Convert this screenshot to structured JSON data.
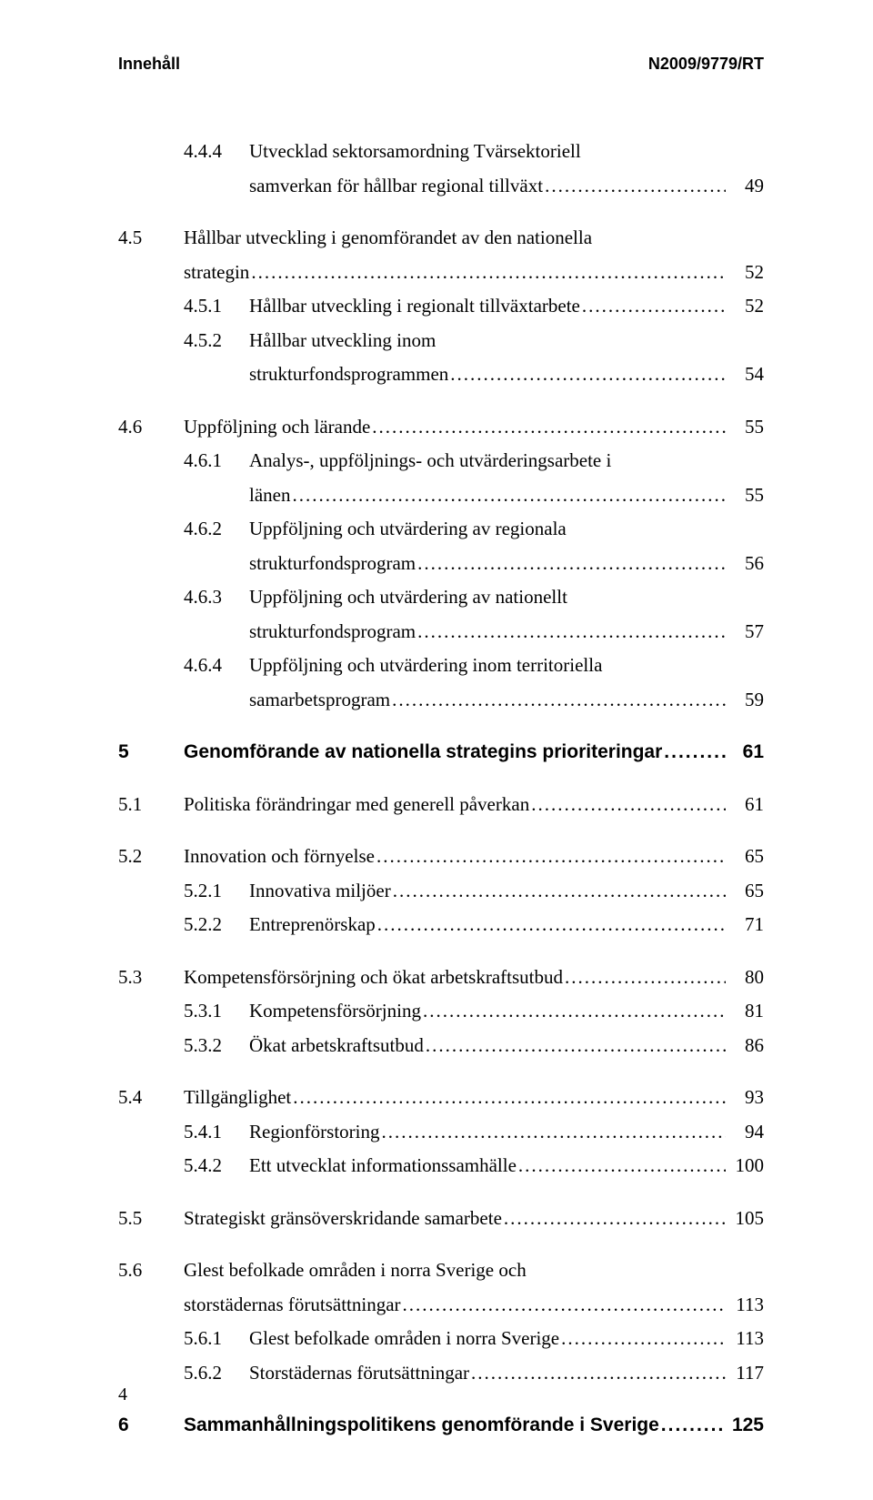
{
  "header_left": "Innehåll",
  "header_right": "N2009/9779/RT",
  "page_number": "4",
  "entries": [
    {
      "type": "subsub",
      "num": "4.4.4",
      "text": "Utvecklad sektorsamordning Tvärsektoriell",
      "text2": "samverkan för hållbar regional tillväxt",
      "page": "49",
      "multiline": true
    },
    {
      "type": "sub",
      "num": "4.5",
      "text": "Hållbar utveckling i genomförandet av den nationella",
      "text2": "strategin",
      "page": "52",
      "multiline": true,
      "gap_before": true
    },
    {
      "type": "subsub",
      "num": "4.5.1",
      "text": "Hållbar utveckling i regionalt tillväxtarbete",
      "page": "52"
    },
    {
      "type": "subsub",
      "num": "4.5.2",
      "text": "Hållbar utveckling inom",
      "text2": "strukturfondsprogrammen",
      "page": "54",
      "multiline": true
    },
    {
      "type": "sub",
      "num": "4.6",
      "text": "Uppföljning och lärande",
      "page": "55",
      "gap_before": true
    },
    {
      "type": "subsub",
      "num": "4.6.1",
      "text": "Analys-, uppföljnings- och utvärderingsarbete i",
      "text2": "länen",
      "page": "55",
      "multiline": true
    },
    {
      "type": "subsub",
      "num": "4.6.2",
      "text": "Uppföljning och utvärdering av regionala",
      "text2": "strukturfondsprogram",
      "page": "56",
      "multiline": true
    },
    {
      "type": "subsub",
      "num": "4.6.3",
      "text": "Uppföljning och utvärdering av nationellt",
      "text2": "strukturfondsprogram",
      "page": "57",
      "multiline": true
    },
    {
      "type": "subsub",
      "num": "4.6.4",
      "text": "Uppföljning och utvärdering inom territoriella",
      "text2": "samarbetsprogram",
      "page": "59",
      "multiline": true
    },
    {
      "type": "chapter",
      "num": "5",
      "text": "Genomförande av nationella strategins prioriteringar",
      "page": "61",
      "gap_before": true
    },
    {
      "type": "sub",
      "num": "5.1",
      "text": "Politiska förändringar med generell påverkan",
      "page": "61",
      "gap_before": true
    },
    {
      "type": "sub",
      "num": "5.2",
      "text": "Innovation och förnyelse",
      "page": "65",
      "gap_before": true
    },
    {
      "type": "subsub",
      "num": "5.2.1",
      "text": "Innovativa miljöer",
      "page": "65"
    },
    {
      "type": "subsub",
      "num": "5.2.2",
      "text": "Entreprenörskap",
      "page": "71"
    },
    {
      "type": "sub",
      "num": "5.3",
      "text": "Kompetensförsörjning och ökat arbetskraftsutbud",
      "page": "80",
      "gap_before": true
    },
    {
      "type": "subsub",
      "num": "5.3.1",
      "text": "Kompetensförsörjning",
      "page": "81"
    },
    {
      "type": "subsub",
      "num": "5.3.2",
      "text": "Ökat arbetskraftsutbud",
      "page": "86"
    },
    {
      "type": "sub",
      "num": "5.4",
      "text": "Tillgänglighet",
      "page": "93",
      "gap_before": true
    },
    {
      "type": "subsub",
      "num": "5.4.1",
      "text": "Regionförstoring",
      "page": "94"
    },
    {
      "type": "subsub",
      "num": "5.4.2",
      "text": "Ett utvecklat informationssamhälle",
      "page": "100"
    },
    {
      "type": "sub",
      "num": "5.5",
      "text": "Strategiskt gränsöverskridande samarbete",
      "page": "105",
      "gap_before": true
    },
    {
      "type": "sub",
      "num": "5.6",
      "text": "Glest befolkade områden i norra Sverige och",
      "text2": "storstädernas förutsättningar",
      "page": "113",
      "multiline": true,
      "gap_before": true
    },
    {
      "type": "subsub",
      "num": "5.6.1",
      "text": "Glest befolkade områden i norra Sverige",
      "page": "113"
    },
    {
      "type": "subsub",
      "num": "5.6.2",
      "text": "Storstädernas förutsättningar",
      "page": "117"
    },
    {
      "type": "chapter",
      "num": "6",
      "text": "Sammanhållningspolitikens genomförande i Sverige",
      "page": "125",
      "gap_before": true
    }
  ]
}
